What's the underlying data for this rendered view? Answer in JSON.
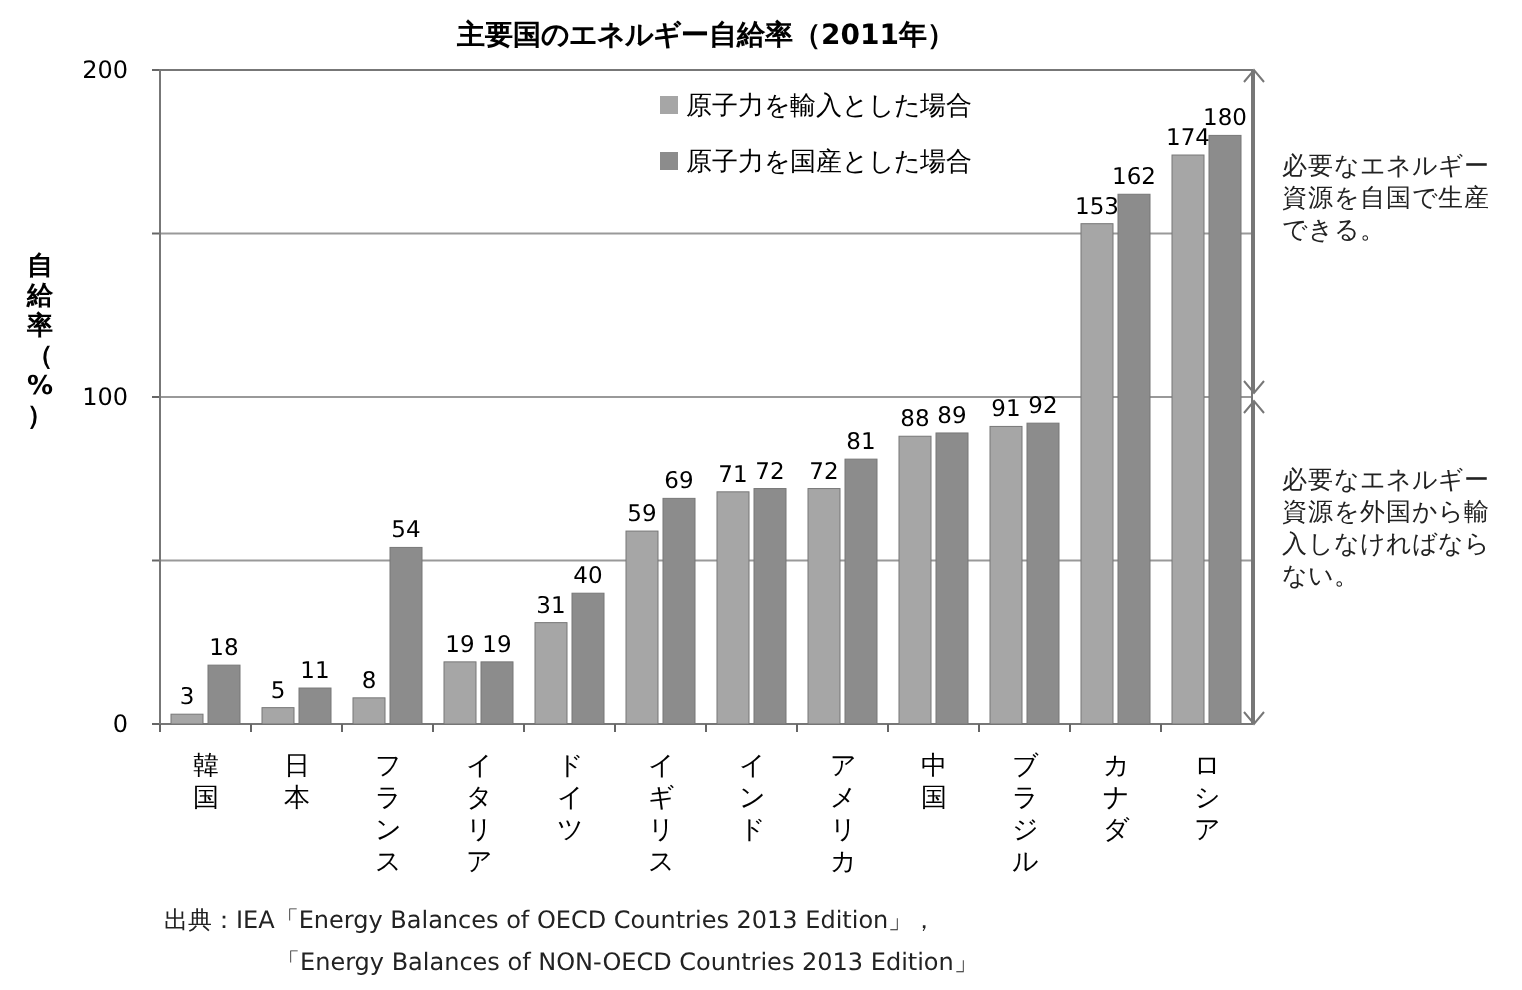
{
  "chart_data": {
    "type": "bar",
    "title": "主要国のエネルギー自給率（2011年）",
    "ylabel": "自給率（%）",
    "categories": [
      "韓国",
      "日本",
      "フランス",
      "イタリア",
      "ドイツ",
      "イギリス",
      "インド",
      "アメリカ",
      "中国",
      "ブラジル",
      "カナダ",
      "ロシア"
    ],
    "series": [
      {
        "name": "原子力を輸入とした場合",
        "color": "#a6a6a6",
        "values": [
          3,
          5,
          8,
          19,
          31,
          59,
          71,
          72,
          88,
          91,
          153,
          174
        ]
      },
      {
        "name": "原子力を国産とした場合",
        "color": "#8c8c8c",
        "values": [
          18,
          11,
          54,
          19,
          40,
          69,
          72,
          81,
          89,
          92,
          162,
          180
        ]
      }
    ],
    "ylim": [
      0,
      200
    ],
    "yticks": [
      0,
      {
        "value": 50,
        "label": null
      },
      100,
      {
        "value": 150,
        "label": null
      },
      200
    ],
    "grid": "y",
    "legend": "top",
    "data_labels": true,
    "annotations": [
      "必要なエネルギー資源を自国で生産できる。",
      "必要なエネルギー資源を外国から輸入しなければならない。",
      "出典：IEA「Energy Balances of OECD Countries 2013 Edition」，",
      "「Energy Balances of NON-OECD Countries 2013 Edition」"
    ]
  }
}
